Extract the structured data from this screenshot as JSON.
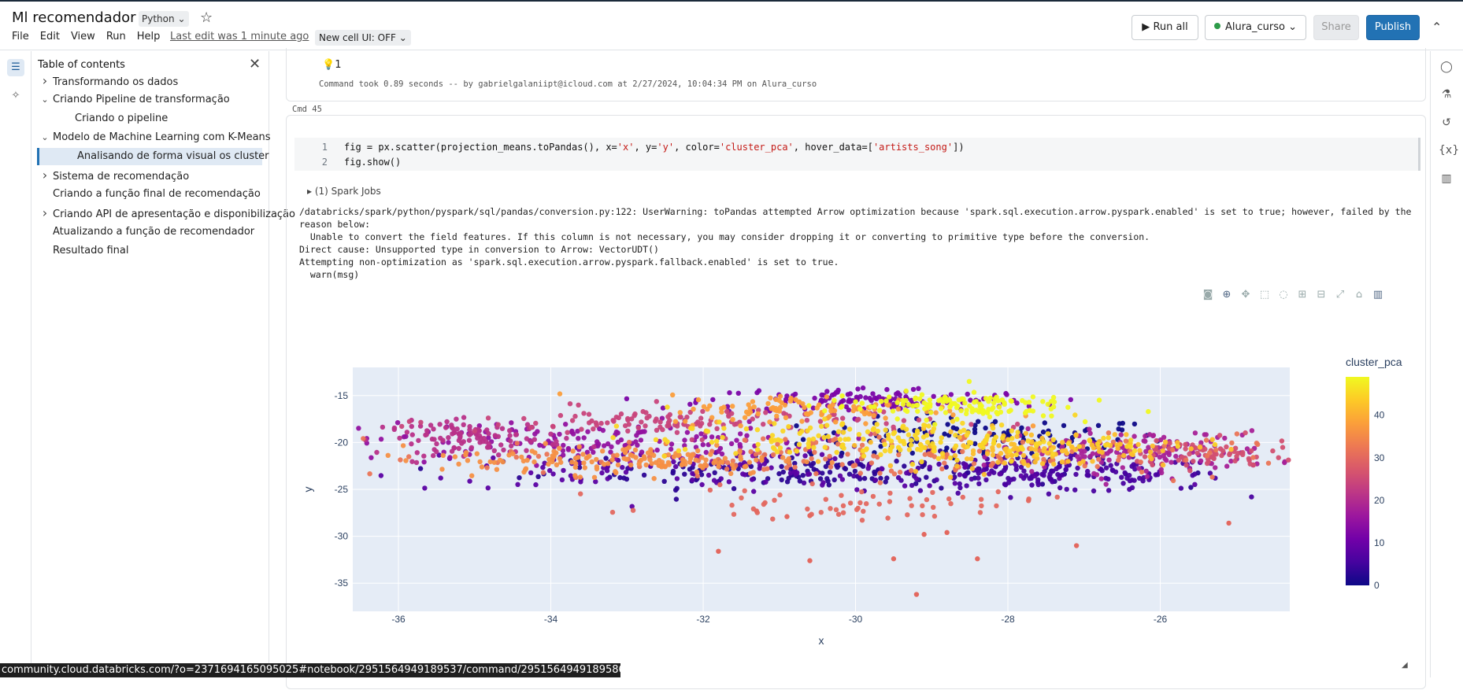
{
  "header": {
    "title": "Ml recomendador",
    "language": "Python",
    "menu": [
      "File",
      "Edit",
      "View",
      "Run",
      "Help"
    ],
    "last_edit": "Last edit was 1 minute ago",
    "new_cell_ui": "New cell UI: OFF",
    "run_all": "Run all",
    "cluster": "Alura_curso",
    "share": "Share",
    "publish": "Publish"
  },
  "toc": {
    "title": "Table of contents",
    "items": [
      {
        "label": "Transformando os dados",
        "chevron": "right"
      },
      {
        "label": "Criando Pipeline de transformação",
        "chevron": "down"
      },
      {
        "label": "Criando o pipeline",
        "chevron": ""
      },
      {
        "label": "Modelo de Machine Learning com K-Means",
        "chevron": "down"
      },
      {
        "label": "Analisando de forma visual os cluster",
        "chevron": "",
        "selected": true
      },
      {
        "label": "Sistema de recomendação",
        "chevron": "right"
      },
      {
        "label": "Criando a função final de recomendação",
        "chevron": ""
      },
      {
        "label": "Criando API de apresentação e disponibilização",
        "chevron": "right"
      },
      {
        "label": "Atualizando a função de recomendador",
        "chevron": ""
      },
      {
        "label": "Resultado final",
        "chevron": ""
      }
    ]
  },
  "prev_cell": {
    "hint_count": "1",
    "command_took": "Command took 0.89 seconds -- by gabrielgalaniipt@icloud.com at 2/27/2024, 10:04:34 PM on Alura_curso"
  },
  "cell": {
    "label": "Cmd 45",
    "code_lines": [
      {
        "n": "1",
        "pre": "fig = px.scatter(projection_means.toPandas(), x=",
        "s1": "'x'",
        "mid1": ", y=",
        "s2": "'y'",
        "mid2": ", color=",
        "s3": "'cluster_pca'",
        "mid3": ", hover_data=[",
        "s4": "'artists_song'",
        "post": "])"
      },
      {
        "n": "2",
        "pre": "fig.show()",
        "s1": "",
        "mid1": "",
        "s2": "",
        "mid2": "",
        "s3": "",
        "mid3": "",
        "s4": "",
        "post": ""
      }
    ],
    "spark_jobs": "(1) Spark Jobs",
    "stderr": "/databricks/spark/python/pyspark/sql/pandas/conversion.py:122: UserWarning: toPandas attempted Arrow optimization because 'spark.sql.execution.arrow.pyspark.enabled' is set to true; however, failed by the reason below:\n  Unable to convert the field features. If this column is not necessary, you may consider dropping it or converting to primitive type before the conversion.\nDirect cause: Unsupported type in conversion to Arrow: VectorUDT()\nAttempting non-optimization as 'spark.sql.execution.arrow.pyspark.fallback.enabled' is set to true.\n  warn(msg)"
  },
  "status_url": "community.cloud.databricks.com/?o=2371694165095025#notebook/2951564949189537/command/2951564949189586",
  "chart_data": {
    "type": "scatter",
    "xlabel": "x",
    "ylabel": "y",
    "xlim": [
      -36.6,
      -24.3
    ],
    "ylim": [
      -38,
      -12
    ],
    "x_ticks": [
      -36,
      -34,
      -32,
      -30,
      -28,
      -26
    ],
    "y_ticks": [
      -15,
      -20,
      -25,
      -30,
      -35
    ],
    "colorbar": {
      "title": "cluster_pca",
      "min": 0,
      "max": 49,
      "ticks": [
        0,
        10,
        20,
        30,
        40
      ]
    },
    "colorscale": [
      "#0d0887",
      "#46039f",
      "#7201a8",
      "#9c179e",
      "#bd3786",
      "#d8576b",
      "#ed7953",
      "#fb9f3a",
      "#fdca26",
      "#f0f921"
    ],
    "plot_bg": "#e5ecf6",
    "series": [
      {
        "cluster": 0,
        "cx": -28.3,
        "cy": -19.6,
        "sx": 1.2,
        "sy": 1.1,
        "count": 120
      },
      {
        "cluster": 3,
        "cx": -30.5,
        "cy": -23.0,
        "sx": 1.8,
        "sy": 0.9,
        "count": 160
      },
      {
        "cluster": 6,
        "cx": -27.5,
        "cy": -23.5,
        "sx": 1.2,
        "sy": 0.9,
        "count": 160
      },
      {
        "cluster": 8,
        "cx": -31.5,
        "cy": -22.8,
        "sx": 2.5,
        "sy": 1.0,
        "count": 140
      },
      {
        "cluster": 12,
        "cx": -29.8,
        "cy": -15.5,
        "sx": 1.1,
        "sy": 0.7,
        "count": 130
      },
      {
        "cluster": 15,
        "cx": -33.5,
        "cy": -20.0,
        "sx": 1.5,
        "sy": 1.1,
        "count": 170
      },
      {
        "cluster": 18,
        "cx": -26.3,
        "cy": -21.0,
        "sx": 0.9,
        "sy": 1.1,
        "count": 160
      },
      {
        "cluster": 21,
        "cx": -35.0,
        "cy": -19.5,
        "sx": 0.6,
        "sy": 0.9,
        "count": 110
      },
      {
        "cluster": 24,
        "cx": -32.0,
        "cy": -17.8,
        "sx": 1.5,
        "sy": 0.8,
        "count": 140
      },
      {
        "cluster": 26,
        "cx": -25.4,
        "cy": -21.3,
        "sx": 0.6,
        "sy": 0.8,
        "count": 80
      },
      {
        "cluster": 30,
        "cx": -30.0,
        "cy": -26.5,
        "sx": 1.2,
        "sy": 0.8,
        "count": 60
      },
      {
        "cluster": 32,
        "cx": -30.0,
        "cy": -21.5,
        "sx": 2.5,
        "sy": 1.2,
        "count": 170
      },
      {
        "cluster": 36,
        "cx": -33.0,
        "cy": -21.8,
        "sx": 1.2,
        "sy": 0.8,
        "count": 160
      },
      {
        "cluster": 38,
        "cx": -30.5,
        "cy": -16.5,
        "sx": 1.0,
        "sy": 0.8,
        "count": 100
      },
      {
        "cluster": 42,
        "cx": -27.7,
        "cy": -20.7,
        "sx": 1.0,
        "sy": 1.0,
        "count": 120
      },
      {
        "cluster": 45,
        "cx": -29.5,
        "cy": -19.8,
        "sx": 1.5,
        "sy": 1.0,
        "count": 190
      },
      {
        "cluster": 49,
        "cx": -28.8,
        "cy": -16.0,
        "sx": 0.8,
        "sy": 0.7,
        "count": 130
      }
    ],
    "outliers": [
      {
        "x": -31.8,
        "y": -31.6
      },
      {
        "x": -30.6,
        "y": -32.6
      },
      {
        "x": -29.5,
        "y": -32.4
      },
      {
        "x": -28.4,
        "y": -32.4
      },
      {
        "x": -29.2,
        "y": -36.2
      },
      {
        "x": -27.1,
        "y": -31.0
      },
      {
        "x": -25.1,
        "y": -28.6
      },
      {
        "x": -29.1,
        "y": -29.8
      },
      {
        "x": -28.8,
        "y": -29.6
      },
      {
        "x": -31.3,
        "y": -27.3
      },
      {
        "x": -30.9,
        "y": -27.9
      },
      {
        "x": -30.6,
        "y": -27.8
      }
    ]
  }
}
